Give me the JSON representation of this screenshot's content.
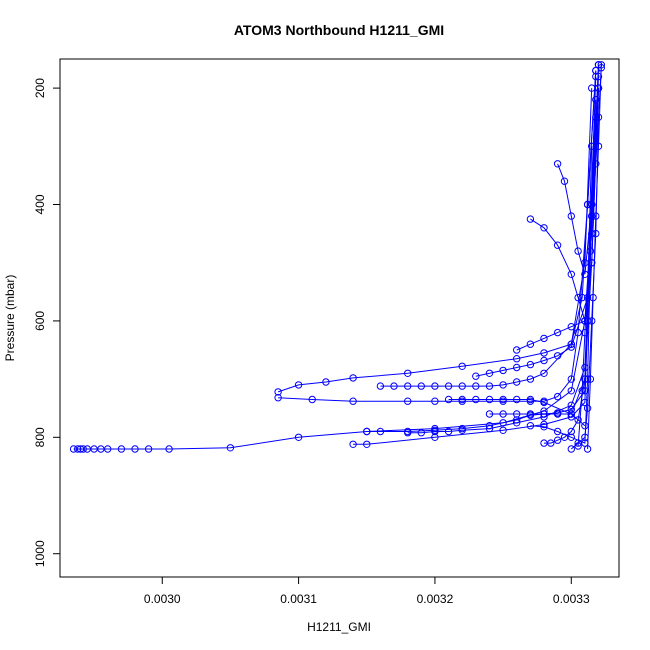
{
  "chart_data": {
    "type": "line",
    "title": "ATOM3 Northbound H1211_GMI",
    "xlabel": "H1211_GMI",
    "ylabel": "Pressure (mbar)",
    "xlim": [
      0.002925,
      0.003335
    ],
    "ylim": [
      1040,
      150
    ],
    "y_reversed": true,
    "x_ticks": [
      0.003,
      0.0031,
      0.0032,
      0.0033
    ],
    "x_tick_labels": [
      "0.0030",
      "0.0031",
      "0.0032",
      "0.0033"
    ],
    "y_ticks": [
      200,
      400,
      600,
      800,
      1000
    ],
    "y_tick_labels": [
      "200",
      "400",
      "600",
      "800",
      "1000"
    ],
    "grid": false,
    "line_color": "#0000ff",
    "marker": "open-circle",
    "series": [
      {
        "x": [
          0.002935,
          0.002938,
          0.00294,
          0.002942,
          0.002945,
          0.00295,
          0.002955,
          0.00296,
          0.00297,
          0.00298,
          0.00299,
          0.003005,
          0.00305,
          0.0031,
          0.00315,
          0.0032,
          0.00325,
          0.00328,
          0.0033,
          0.00331,
          0.003315,
          0.00332
        ],
        "y": [
          820,
          820,
          820,
          820,
          820,
          820,
          820,
          820,
          820,
          820,
          820,
          820,
          818,
          800,
          790,
          785,
          775,
          755,
          720,
          600,
          420,
          160
        ]
      },
      {
        "x": [
          0.00314,
          0.00315,
          0.0032,
          0.00325,
          0.00328,
          0.0033,
          0.00331,
          0.003312,
          0.003315,
          0.00332
        ],
        "y": [
          812,
          812,
          800,
          788,
          778,
          765,
          740,
          600,
          420,
          160
        ]
      },
      {
        "x": [
          0.003085,
          0.0031,
          0.00312,
          0.00314,
          0.00318,
          0.00322,
          0.00326,
          0.00328,
          0.0033,
          0.003308,
          0.003312,
          0.003318
        ],
        "y": [
          722,
          710,
          705,
          698,
          690,
          678,
          665,
          655,
          640,
          560,
          400,
          170
        ]
      },
      {
        "x": [
          0.003085,
          0.00311,
          0.00314,
          0.00318,
          0.0032,
          0.00322,
          0.00325,
          0.00327,
          0.00328,
          0.00329,
          0.0033,
          0.003305,
          0.003312,
          0.003318
        ],
        "y": [
          732,
          735,
          738,
          738,
          738,
          738,
          738,
          738,
          738,
          730,
          700,
          620,
          400,
          170
        ]
      },
      {
        "x": [
          0.00316,
          0.00317,
          0.00318,
          0.00319,
          0.0032,
          0.00321,
          0.00322,
          0.00323,
          0.00324,
          0.00325,
          0.00326,
          0.00327,
          0.00328,
          0.0033,
          0.00331,
          0.003315
        ],
        "y": [
          712,
          712,
          712,
          712,
          712,
          712,
          712,
          712,
          712,
          710,
          705,
          700,
          690,
          640,
          500,
          200
        ]
      },
      {
        "x": [
          0.00315,
          0.00316,
          0.00318,
          0.0032,
          0.00322,
          0.00324,
          0.00326,
          0.00327,
          0.00328,
          0.00329,
          0.0033,
          0.00331,
          0.003318
        ],
        "y": [
          790,
          790,
          790,
          788,
          785,
          780,
          770,
          762,
          760,
          760,
          760,
          700,
          220
        ]
      },
      {
        "x": [
          0.00318,
          0.00319,
          0.0032,
          0.00321,
          0.00322,
          0.00324,
          0.00326,
          0.00328,
          0.0033,
          0.00331,
          0.003318
        ],
        "y": [
          792,
          792,
          790,
          790,
          788,
          785,
          775,
          765,
          745,
          680,
          250
        ]
      },
      {
        "x": [
          0.00324,
          0.00325,
          0.00326,
          0.00327,
          0.00328,
          0.00329,
          0.0033,
          0.00331,
          0.003315
        ],
        "y": [
          760,
          760,
          760,
          760,
          760,
          758,
          752,
          720,
          300
        ]
      },
      {
        "x": [
          0.00321,
          0.00322,
          0.00323,
          0.00324,
          0.00325,
          0.00326,
          0.00327,
          0.00328,
          0.0033,
          0.00331
        ],
        "y": [
          735,
          735,
          735,
          735,
          735,
          735,
          735,
          740,
          760,
          780
        ]
      },
      {
        "x": [
          0.00323,
          0.00324,
          0.00325,
          0.00326,
          0.00327,
          0.00328,
          0.00329,
          0.0033,
          0.003312,
          0.003318
        ],
        "y": [
          695,
          690,
          685,
          680,
          675,
          668,
          660,
          645,
          560,
          180
        ]
      },
      {
        "x": [
          0.00327,
          0.00328,
          0.00329,
          0.0033,
          0.00331,
          0.003312,
          0.003315
        ],
        "y": [
          780,
          782,
          790,
          800,
          810,
          700,
          400
        ]
      },
      {
        "x": [
          0.0033,
          0.003305,
          0.00331,
          0.003312,
          0.003315,
          0.003318,
          0.00332
        ],
        "y": [
          820,
          810,
          800,
          750,
          600,
          450,
          250
        ]
      },
      {
        "x": [
          0.00328,
          0.003285,
          0.00329,
          0.003295,
          0.0033,
          0.003305,
          0.00331,
          0.003315,
          0.00332
        ],
        "y": [
          810,
          810,
          805,
          800,
          790,
          770,
          700,
          500,
          200
        ]
      },
      {
        "x": [
          0.00327,
          0.00328,
          0.00329,
          0.0033,
          0.003305,
          0.00331,
          0.003315,
          0.00332
        ],
        "y": [
          425,
          440,
          470,
          520,
          560,
          600,
          500,
          200
        ]
      },
      {
        "x": [
          0.00326,
          0.00327,
          0.00328,
          0.00329,
          0.0033,
          0.00331,
          0.003315,
          0.00332
        ],
        "y": [
          650,
          640,
          630,
          620,
          610,
          600,
          450,
          180
        ]
      },
      {
        "x": [
          0.00329,
          0.003295,
          0.0033,
          0.003305,
          0.00331,
          0.003315,
          0.00332
        ],
        "y": [
          330,
          360,
          420,
          480,
          520,
          400,
          200
        ]
      },
      {
        "x": [
          0.003312,
          0.003314,
          0.003316,
          0.003318,
          0.00332,
          0.003322
        ],
        "y": [
          820,
          700,
          560,
          420,
          300,
          160
        ]
      },
      {
        "x": [
          0.003305,
          0.003308,
          0.00331,
          0.003314,
          0.003318,
          0.003322
        ],
        "y": [
          815,
          720,
          620,
          480,
          330,
          165
        ]
      }
    ]
  }
}
